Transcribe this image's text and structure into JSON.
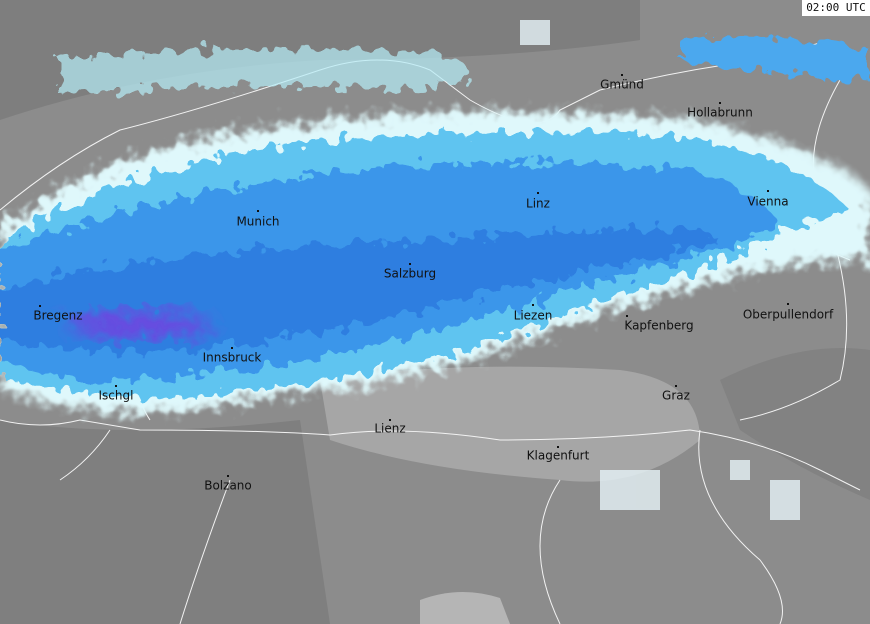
{
  "timestamp": "02:00 UTC",
  "cities": [
    "Gmünd",
    "Hollabrunn",
    "Linz",
    "Vienna",
    "Munich",
    "Salzburg",
    "Bregenz",
    "Liezen",
    "Kapfenberg",
    "Oberpullendorf",
    "Innsbruck",
    "Ischgl",
    "Graz",
    "Lienz",
    "Klagenfurt",
    "Bolzano"
  ]
}
